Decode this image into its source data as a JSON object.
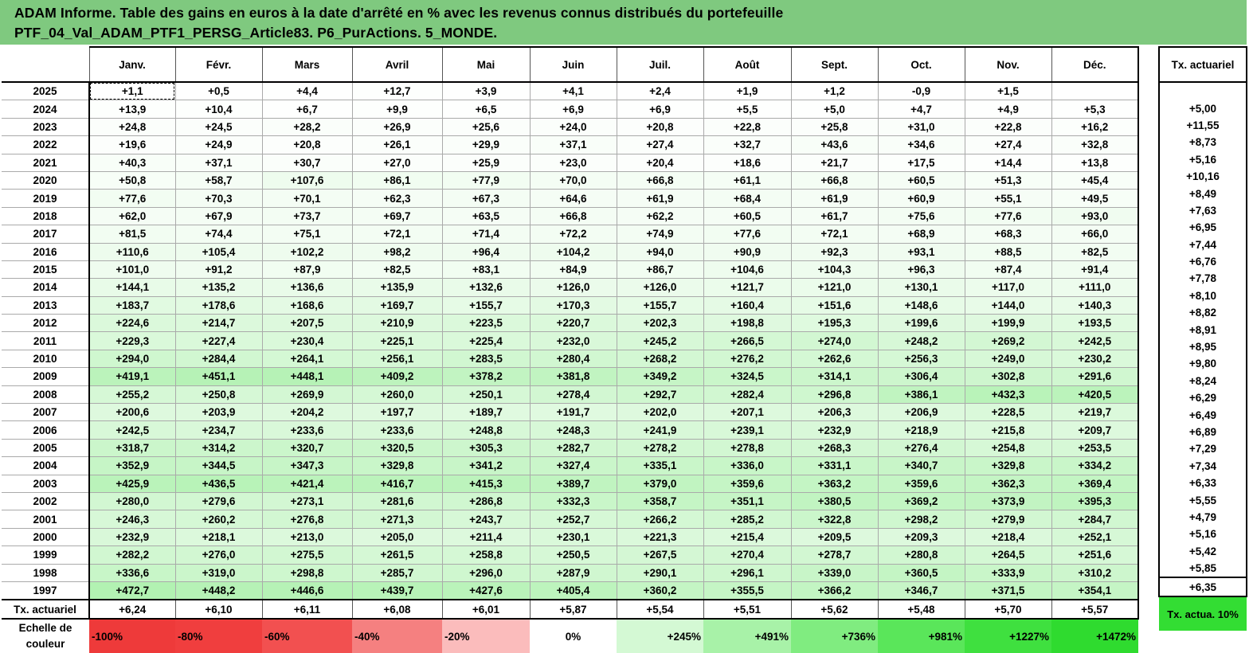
{
  "title": {
    "line1": "ADAM Informe. Table des gains en euros à la date d'arrêté en % avec les revenus connus distribués du portefeuille",
    "line2": "PTF_04_Val_ADAM_PTF1_PERSG_Article83. P6_PurActions. 5_MONDE."
  },
  "months": [
    "Janv.",
    "Févr.",
    "Mars",
    "Avril",
    "Mai",
    "Juin",
    "Juil.",
    "Août",
    "Sept.",
    "Oct.",
    "Nov.",
    "Déc."
  ],
  "side_header": "Tx. actuariel",
  "rows": [
    {
      "year": "2025",
      "values": [
        "+1,1",
        "+0,5",
        "+4,4",
        "+12,7",
        "+3,9",
        "+4,1",
        "+2,4",
        "+1,9",
        "+1,2",
        "-0,9",
        "+1,5",
        ""
      ],
      "tx": ""
    },
    {
      "year": "2024",
      "values": [
        "+13,9",
        "+10,4",
        "+6,7",
        "+9,9",
        "+6,5",
        "+6,9",
        "+6,9",
        "+5,5",
        "+5,0",
        "+4,7",
        "+4,9",
        "+5,3"
      ],
      "tx": "+5,00"
    },
    {
      "year": "2023",
      "values": [
        "+24,8",
        "+24,5",
        "+28,2",
        "+26,9",
        "+25,6",
        "+24,0",
        "+20,8",
        "+22,8",
        "+25,8",
        "+31,0",
        "+22,8",
        "+16,2"
      ],
      "tx": "+11,55"
    },
    {
      "year": "2022",
      "values": [
        "+19,6",
        "+24,9",
        "+20,8",
        "+26,1",
        "+29,9",
        "+37,1",
        "+27,4",
        "+32,7",
        "+43,6",
        "+34,6",
        "+27,4",
        "+32,8"
      ],
      "tx": "+8,73"
    },
    {
      "year": "2021",
      "values": [
        "+40,3",
        "+37,1",
        "+30,7",
        "+27,0",
        "+25,9",
        "+23,0",
        "+20,4",
        "+18,6",
        "+21,7",
        "+17,5",
        "+14,4",
        "+13,8"
      ],
      "tx": "+5,16"
    },
    {
      "year": "2020",
      "values": [
        "+50,8",
        "+58,7",
        "+107,6",
        "+86,1",
        "+77,9",
        "+70,0",
        "+66,8",
        "+61,1",
        "+66,8",
        "+60,5",
        "+51,3",
        "+45,4"
      ],
      "tx": "+10,16"
    },
    {
      "year": "2019",
      "values": [
        "+77,6",
        "+70,3",
        "+70,1",
        "+62,3",
        "+67,3",
        "+64,6",
        "+61,9",
        "+68,4",
        "+61,9",
        "+60,9",
        "+55,1",
        "+49,5"
      ],
      "tx": "+8,49"
    },
    {
      "year": "2018",
      "values": [
        "+62,0",
        "+67,9",
        "+73,7",
        "+69,7",
        "+63,5",
        "+66,8",
        "+62,2",
        "+60,5",
        "+61,7",
        "+75,6",
        "+77,6",
        "+93,0"
      ],
      "tx": "+7,63"
    },
    {
      "year": "2017",
      "values": [
        "+81,5",
        "+74,4",
        "+75,1",
        "+72,1",
        "+71,4",
        "+72,2",
        "+74,9",
        "+77,6",
        "+72,1",
        "+68,9",
        "+68,3",
        "+66,0"
      ],
      "tx": "+6,95"
    },
    {
      "year": "2016",
      "values": [
        "+110,6",
        "+105,4",
        "+102,2",
        "+98,2",
        "+96,4",
        "+104,2",
        "+94,0",
        "+90,9",
        "+92,3",
        "+93,1",
        "+88,5",
        "+82,5"
      ],
      "tx": "+7,44"
    },
    {
      "year": "2015",
      "values": [
        "+101,0",
        "+91,2",
        "+87,9",
        "+82,5",
        "+83,1",
        "+84,9",
        "+86,7",
        "+104,6",
        "+104,3",
        "+96,3",
        "+87,4",
        "+91,4"
      ],
      "tx": "+6,76"
    },
    {
      "year": "2014",
      "values": [
        "+144,1",
        "+135,2",
        "+136,6",
        "+135,9",
        "+132,6",
        "+126,0",
        "+126,0",
        "+121,7",
        "+121,0",
        "+130,1",
        "+117,0",
        "+111,0"
      ],
      "tx": "+7,78"
    },
    {
      "year": "2013",
      "values": [
        "+183,7",
        "+178,6",
        "+168,6",
        "+169,7",
        "+155,7",
        "+170,3",
        "+155,7",
        "+160,4",
        "+151,6",
        "+148,6",
        "+144,0",
        "+140,3"
      ],
      "tx": "+8,10"
    },
    {
      "year": "2012",
      "values": [
        "+224,6",
        "+214,7",
        "+207,5",
        "+210,9",
        "+223,5",
        "+220,7",
        "+202,3",
        "+198,8",
        "+195,3",
        "+199,6",
        "+199,9",
        "+193,5"
      ],
      "tx": "+8,82"
    },
    {
      "year": "2011",
      "values": [
        "+229,3",
        "+227,4",
        "+230,4",
        "+225,1",
        "+225,4",
        "+232,0",
        "+245,2",
        "+266,5",
        "+274,0",
        "+248,2",
        "+269,2",
        "+242,5"
      ],
      "tx": "+8,91"
    },
    {
      "year": "2010",
      "values": [
        "+294,0",
        "+284,4",
        "+264,1",
        "+256,1",
        "+283,5",
        "+280,4",
        "+268,2",
        "+276,2",
        "+262,6",
        "+256,3",
        "+249,0",
        "+230,2"
      ],
      "tx": "+8,95"
    },
    {
      "year": "2009",
      "values": [
        "+419,1",
        "+451,1",
        "+448,1",
        "+409,2",
        "+378,2",
        "+381,8",
        "+349,2",
        "+324,5",
        "+314,1",
        "+306,4",
        "+302,8",
        "+291,6"
      ],
      "tx": "+9,80"
    },
    {
      "year": "2008",
      "values": [
        "+255,2",
        "+250,8",
        "+269,9",
        "+260,0",
        "+250,1",
        "+278,4",
        "+292,7",
        "+282,4",
        "+296,8",
        "+386,1",
        "+432,3",
        "+420,5"
      ],
      "tx": "+8,24"
    },
    {
      "year": "2007",
      "values": [
        "+200,6",
        "+203,9",
        "+204,2",
        "+197,7",
        "+189,7",
        "+191,7",
        "+202,0",
        "+207,1",
        "+206,3",
        "+206,9",
        "+228,5",
        "+219,7"
      ],
      "tx": "+6,29"
    },
    {
      "year": "2006",
      "values": [
        "+242,5",
        "+234,7",
        "+233,6",
        "+233,6",
        "+248,8",
        "+248,3",
        "+241,9",
        "+239,1",
        "+232,9",
        "+218,9",
        "+215,8",
        "+209,7"
      ],
      "tx": "+6,49"
    },
    {
      "year": "2005",
      "values": [
        "+318,7",
        "+314,2",
        "+320,7",
        "+320,5",
        "+305,3",
        "+282,7",
        "+278,2",
        "+278,8",
        "+268,3",
        "+276,4",
        "+254,8",
        "+253,5"
      ],
      "tx": "+6,89"
    },
    {
      "year": "2004",
      "values": [
        "+352,9",
        "+344,5",
        "+347,3",
        "+329,8",
        "+341,2",
        "+327,4",
        "+335,1",
        "+336,0",
        "+331,1",
        "+340,7",
        "+329,8",
        "+334,2"
      ],
      "tx": "+7,29"
    },
    {
      "year": "2003",
      "values": [
        "+425,9",
        "+436,5",
        "+421,4",
        "+416,7",
        "+415,3",
        "+389,7",
        "+379,0",
        "+359,6",
        "+363,2",
        "+359,6",
        "+362,3",
        "+369,4"
      ],
      "tx": "+7,34"
    },
    {
      "year": "2002",
      "values": [
        "+280,0",
        "+279,6",
        "+273,1",
        "+281,6",
        "+286,8",
        "+332,3",
        "+358,7",
        "+351,1",
        "+380,5",
        "+369,2",
        "+373,9",
        "+395,3"
      ],
      "tx": "+6,33"
    },
    {
      "year": "2001",
      "values": [
        "+246,3",
        "+260,2",
        "+276,8",
        "+271,3",
        "+243,7",
        "+252,7",
        "+266,2",
        "+285,2",
        "+322,8",
        "+298,2",
        "+279,9",
        "+284,7"
      ],
      "tx": "+5,55"
    },
    {
      "year": "2000",
      "values": [
        "+232,9",
        "+218,1",
        "+213,0",
        "+205,0",
        "+211,4",
        "+230,1",
        "+221,3",
        "+215,4",
        "+209,5",
        "+209,3",
        "+218,4",
        "+252,1"
      ],
      "tx": "+4,79"
    },
    {
      "year": "1999",
      "values": [
        "+282,2",
        "+276,0",
        "+275,5",
        "+261,5",
        "+258,8",
        "+250,5",
        "+267,5",
        "+270,4",
        "+278,7",
        "+280,8",
        "+264,5",
        "+251,6"
      ],
      "tx": "+5,16"
    },
    {
      "year": "1998",
      "values": [
        "+336,6",
        "+319,0",
        "+298,8",
        "+285,7",
        "+296,0",
        "+287,9",
        "+290,1",
        "+296,1",
        "+339,0",
        "+360,5",
        "+333,9",
        "+310,2"
      ],
      "tx": "+5,42"
    },
    {
      "year": "1997",
      "values": [
        "+472,7",
        "+448,2",
        "+446,6",
        "+439,7",
        "+427,6",
        "+405,4",
        "+360,2",
        "+355,5",
        "+366,2",
        "+346,7",
        "+371,5",
        "+354,1"
      ],
      "tx": "+5,85"
    }
  ],
  "actuariel_row": {
    "label": "Tx. actuariel",
    "values": [
      "+6,24",
      "+6,10",
      "+6,11",
      "+6,08",
      "+6,01",
      "+5,87",
      "+5,54",
      "+5,51",
      "+5,62",
      "+5,48",
      "+5,70",
      "+5,57"
    ],
    "tx": "+6,35"
  },
  "scale": {
    "label": "Echelle de couleur",
    "steps": [
      {
        "text": "-100%",
        "color": "#ee3a3a"
      },
      {
        "text": "-80%",
        "color": "#f03e3e"
      },
      {
        "text": "-60%",
        "color": "#f25050"
      },
      {
        "text": "-40%",
        "color": "#f58080"
      },
      {
        "text": "-20%",
        "color": "#fbbcbc"
      },
      {
        "text": "0%",
        "color": "#ffffff"
      },
      {
        "text": "+245%",
        "color": "#d4f9d4"
      },
      {
        "text": "+491%",
        "color": "#a8f2a8"
      },
      {
        "text": "+736%",
        "color": "#80ec80"
      },
      {
        "text": "+981%",
        "color": "#5ae65a"
      },
      {
        "text": "+1227%",
        "color": "#3fe03f"
      },
      {
        "text": "+1472%",
        "color": "#2fdb2f"
      }
    ],
    "side_text": "Tx. actua. 10%",
    "side_color": "#33dd33"
  },
  "colors": {
    "title_bg": "#7fc97f",
    "zero": "#ffffff",
    "max_green": [
      47,
      219,
      47
    ],
    "scale_max_percent": 1472
  }
}
